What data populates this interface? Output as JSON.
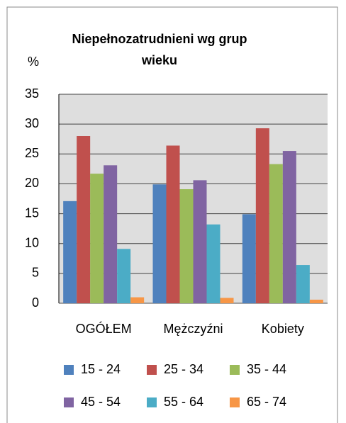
{
  "chart_data": {
    "type": "bar",
    "title": "Niepełnozatrudnieni wg grup wieku",
    "ylabel": "%",
    "categories": [
      "OGÓŁEM",
      "Mężczyźni",
      "Kobiety"
    ],
    "series": [
      {
        "name": "15 - 24",
        "color": "#4f81bd",
        "values": [
          17.1,
          19.9,
          14.9
        ]
      },
      {
        "name": "25 - 34",
        "color": "#c0504d",
        "values": [
          28.0,
          26.4,
          29.3
        ]
      },
      {
        "name": "35 - 44",
        "color": "#9bbb59",
        "values": [
          21.7,
          19.1,
          23.3
        ]
      },
      {
        "name": "45 - 54",
        "color": "#8064a2",
        "values": [
          23.1,
          20.6,
          25.5
        ]
      },
      {
        "name": "55 - 64",
        "color": "#4bacc6",
        "values": [
          9.1,
          13.2,
          6.4
        ]
      },
      {
        "name": "65 - 74",
        "color": "#f79646",
        "values": [
          1.0,
          0.9,
          0.6
        ]
      }
    ],
    "ylim": [
      0,
      35
    ],
    "yticks": [
      0,
      5,
      10,
      15,
      20,
      25,
      30,
      35
    ],
    "grid": true
  }
}
